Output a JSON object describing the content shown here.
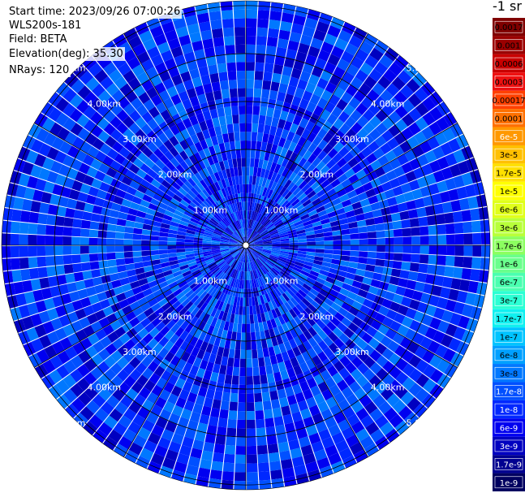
{
  "header": {
    "start_time": "Start time: 2023/09/26 07:00:26",
    "instrument": "WLS200s-181",
    "field": "Field: BETA",
    "elevation": "Elevation(deg): 35.30",
    "nrays": "NRays: 120"
  },
  "colorbar": {
    "unit": "-1 sr",
    "labels": [
      "0.0017",
      "0.001",
      "0.0006",
      "0.0003",
      "0.00017",
      "0.0001",
      "6e-5",
      "3e-5",
      "1.7e-5",
      "1e-5",
      "6e-6",
      "3e-6",
      "1.7e-6",
      "1e-6",
      "6e-7",
      "3e-7",
      "1.7e-7",
      "1e-7",
      "6e-8",
      "3e-8",
      "1.7e-8",
      "1e-8",
      "6e-9",
      "3e-9",
      "1.7e-9",
      "1e-9"
    ],
    "colors": [
      "#800000",
      "#9a0000",
      "#c80000",
      "#ee1010",
      "#ff4000",
      "#ff7000",
      "#ff9800",
      "#ffc000",
      "#ffe000",
      "#ffff00",
      "#e0ff1a",
      "#b8ff3a",
      "#8cff60",
      "#6aff8c",
      "#4affb0",
      "#2cffd4",
      "#10f0f0",
      "#00c4ff",
      "#00a0ff",
      "#0078ff",
      "#0050ff",
      "#0028ff",
      "#0000f0",
      "#0000c0",
      "#000090",
      "#000060"
    ],
    "text_colors": [
      "#000",
      "#000",
      "#000",
      "#000",
      "#000",
      "#000",
      "#fff",
      "#000",
      "#000",
      "#000",
      "#000",
      "#000",
      "#000",
      "#000",
      "#000",
      "#000",
      "#000",
      "#000",
      "#000",
      "#000",
      "#fff",
      "#fff",
      "#fff",
      "#fff",
      "#fff",
      "#fff"
    ]
  },
  "chart_data": {
    "type": "heatmap",
    "projection": "polar PPI",
    "nrays": 120,
    "range_ring_labels": [
      "1.00km",
      "2.00km",
      "3.00km",
      "4.00km",
      "5.00km"
    ],
    "range_rings_km": [
      1,
      2,
      3,
      4,
      5
    ],
    "max_range_km": 5.1,
    "value_scale": "log",
    "value_range": [
      1e-09,
      0.0017
    ],
    "typical_value": 1e-08,
    "enhanced_region": {
      "location": "north-east of center",
      "range_km": [
        0.1,
        1.0
      ],
      "typical_value": 6e-09
    }
  }
}
